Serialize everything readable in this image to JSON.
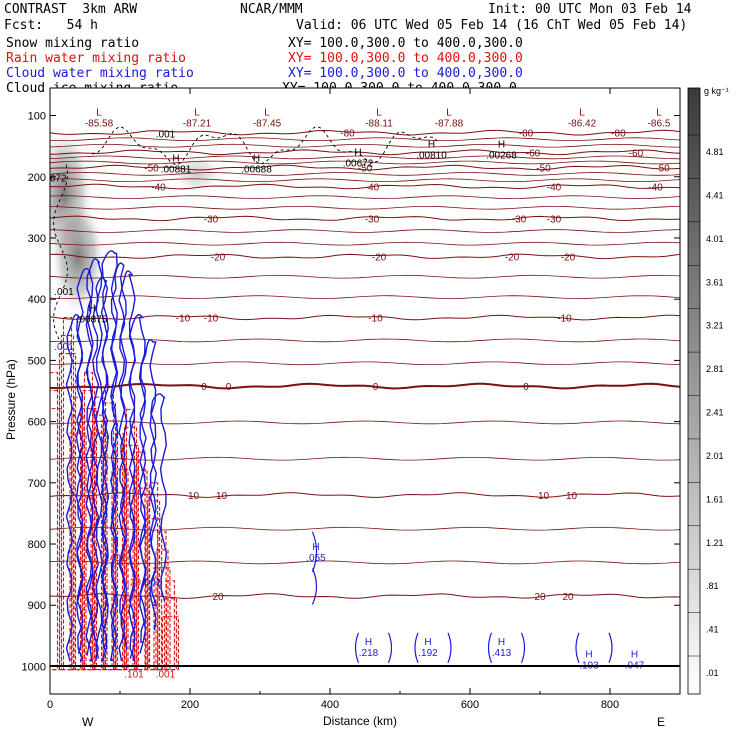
{
  "header": {
    "model": "CONTRAST  3km ARW",
    "org": "NCAR/MMM",
    "init": "Init: 00 UTC Mon 03 Feb 14",
    "fcst": "Fcst:   54 h",
    "valid": "Valid: 06 UTC Wed 05 Feb 14 (16 ChT Wed 05 Feb 14)",
    "fields": [
      {
        "label": "Snow mixing ratio",
        "xy": "XY= 100.0,300.0 to 400.0,300.0",
        "color": "#000000"
      },
      {
        "label": "Rain water mixing ratio",
        "xy": "XY= 100.0,300.0 to 400.0,300.0",
        "color": "#e01010"
      },
      {
        "label": "Cloud water mixing ratio",
        "xy": "XY= 100.0,300.0 to 400.0,300.0",
        "color": "#1a1ad8"
      },
      {
        "label": "Cloud ice mixing ratio",
        "xy": "XY= 100.0,300.0 to 400.0,300.0",
        "color": "#000000"
      }
    ]
  },
  "chart_data": {
    "type": "contour-cross-section",
    "xlabel": "Distance (km)",
    "ylabel": "Pressure (hPa)",
    "xlim": [
      0,
      900
    ],
    "ylim": [
      1045,
      55
    ],
    "x_ticks": [
      0,
      200,
      400,
      600,
      800
    ],
    "y_ticks": [
      100,
      200,
      300,
      400,
      500,
      600,
      700,
      800,
      900,
      1000
    ],
    "x_ends": {
      "left": "W",
      "right": "E"
    },
    "colorbar": {
      "unit": "g kg⁻¹",
      "labels": [
        "4.81",
        "4.41",
        "4.01",
        "3.61",
        "3.21",
        "2.81",
        "2.41",
        "2.01",
        "1.61",
        "1.21",
        ".81",
        ".41",
        ".01"
      ]
    },
    "temperature_contours": [
      {
        "value": -80,
        "p": 128,
        "labels": [
          {
            "x": 425,
            "t": "-80"
          },
          {
            "x": 680,
            "t": "-80"
          },
          {
            "x": 812,
            "t": "-80"
          }
        ]
      },
      {
        "value": -60,
        "p": 160,
        "labels": [
          {
            "x": 690,
            "t": "-60"
          },
          {
            "x": 837,
            "t": "-60"
          }
        ]
      },
      {
        "value": -50,
        "p": 185,
        "labels": [
          {
            "x": 145,
            "t": "-50"
          },
          {
            "x": 450,
            "t": "-50"
          },
          {
            "x": 705,
            "t": "-50"
          },
          {
            "x": 875,
            "t": "-50"
          }
        ]
      },
      {
        "value": -40,
        "p": 216,
        "labels": [
          {
            "x": 155,
            "t": "-40"
          },
          {
            "x": 460,
            "t": "-40"
          },
          {
            "x": 720,
            "t": "-40"
          },
          {
            "x": 865,
            "t": "-40"
          }
        ]
      },
      {
        "value": -30,
        "p": 268,
        "labels": [
          {
            "x": 230,
            "t": "-30"
          },
          {
            "x": 460,
            "t": "-30"
          },
          {
            "x": 670,
            "t": "-30"
          },
          {
            "x": 720,
            "t": "-30"
          }
        ]
      },
      {
        "value": -20,
        "p": 330,
        "labels": [
          {
            "x": 240,
            "t": "-20"
          },
          {
            "x": 470,
            "t": "-20"
          },
          {
            "x": 660,
            "t": "-20"
          },
          {
            "x": 740,
            "t": "-20"
          }
        ]
      },
      {
        "value": -10,
        "p": 430,
        "labels": [
          {
            "x": 190,
            "t": "-10"
          },
          {
            "x": 230,
            "t": "-10"
          },
          {
            "x": 465,
            "t": "-10"
          },
          {
            "x": 735,
            "t": "-10"
          }
        ]
      },
      {
        "value": 0,
        "p": 542,
        "labels": [
          {
            "x": 220,
            "t": "0"
          },
          {
            "x": 255,
            "t": "0"
          },
          {
            "x": 465,
            "t": "0"
          },
          {
            "x": 680,
            "t": "0"
          }
        ]
      },
      {
        "value": 10,
        "p": 720,
        "labels": [
          {
            "x": 205,
            "t": "10"
          },
          {
            "x": 245,
            "t": "10"
          },
          {
            "x": 705,
            "t": "10"
          },
          {
            "x": 745,
            "t": "10"
          }
        ]
      },
      {
        "value": 20,
        "p": 885,
        "labels": [
          {
            "x": 240,
            "t": "20"
          },
          {
            "x": 700,
            "t": "20"
          },
          {
            "x": 740,
            "t": "20"
          }
        ]
      }
    ],
    "top_labels": [
      {
        "x": 70,
        "p": 100,
        "l": "L",
        "v": "-85.58",
        "c": "#7a1010"
      },
      {
        "x": 210,
        "p": 100,
        "l": "L",
        "v": "-87.21",
        "c": "#7a1010"
      },
      {
        "x": 310,
        "p": 100,
        "l": "L",
        "v": "-87.45",
        "c": "#7a1010"
      },
      {
        "x": 470,
        "p": 100,
        "l": "L",
        "v": "-88.11",
        "c": "#7a1010"
      },
      {
        "x": 570,
        "p": 100,
        "l": "L",
        "v": "-87.88",
        "c": "#7a1010"
      },
      {
        "x": 760,
        "p": 100,
        "l": "L",
        "v": "-86.42",
        "c": "#7a1010"
      },
      {
        "x": 870,
        "p": 100,
        "l": "L",
        "v": "-86.5",
        "c": "#7a1010"
      }
    ],
    "max_labels": [
      {
        "x": 165,
        "p": 118,
        "l": "",
        "v": ".001",
        "c": "#000000"
      },
      {
        "x": 180,
        "p": 175,
        "l": "H",
        "v": ".00881",
        "c": "#000000"
      },
      {
        "x": 295,
        "p": 175,
        "l": "H",
        "v": ".00688",
        "c": "#000000"
      },
      {
        "x": 440,
        "p": 165,
        "l": "H",
        "v": ".00672",
        "c": "#000000"
      },
      {
        "x": 545,
        "p": 152,
        "l": "H",
        "v": ".00810",
        "c": "#000000"
      },
      {
        "x": 645,
        "p": 152,
        "l": "H",
        "v": ".00268",
        "c": "#000000"
      },
      {
        "x": 0,
        "p": 190,
        "l": "",
        "v": ".0672",
        "c": "#000000"
      },
      {
        "x": 20,
        "p": 375,
        "l": "",
        "v": ".001",
        "c": "#000000"
      },
      {
        "x": 60,
        "p": 420,
        "l": "H",
        "v": ".00875",
        "c": "#000000"
      },
      {
        "x": 20,
        "p": 465,
        "l": "",
        "v": ".001",
        "c": "#1a1ad8"
      },
      {
        "x": 380,
        "p": 810,
        "l": "H",
        "v": ".055",
        "c": "#1a1ad8"
      },
      {
        "x": 145,
        "p": 850,
        "l": "",
        "v": ".001",
        "c": "#1a1ad8"
      },
      {
        "x": 455,
        "p": 965,
        "l": "H",
        "v": ".218",
        "c": "#1a1ad8"
      },
      {
        "x": 540,
        "p": 965,
        "l": "H",
        "v": ".192",
        "c": "#1a1ad8"
      },
      {
        "x": 645,
        "p": 965,
        "l": "H",
        "v": ".413",
        "c": "#1a1ad8"
      },
      {
        "x": 770,
        "p": 985,
        "l": "H",
        "v": ".193",
        "c": "#1a1ad8"
      },
      {
        "x": 835,
        "p": 985,
        "l": "H",
        "v": ".047",
        "c": "#1a1ad8"
      },
      {
        "x": 95,
        "p": 810,
        "l": "",
        "v": ".401",
        "c": "#e01010"
      },
      {
        "x": 120,
        "p": 850,
        "l": "",
        "v": ".20",
        "c": "#e01010"
      },
      {
        "x": 120,
        "p": 1000,
        "l": "",
        "v": ".101",
        "c": "#e01010"
      },
      {
        "x": 165,
        "p": 1000,
        "l": "",
        "v": ".001",
        "c": "#e01010"
      }
    ],
    "cloud_water_columns": [
      {
        "x": 35,
        "top": 430,
        "bottom": 990
      },
      {
        "x": 50,
        "top": 355,
        "bottom": 990
      },
      {
        "x": 63,
        "top": 340,
        "bottom": 990
      },
      {
        "x": 72,
        "top": 370,
        "bottom": 990
      },
      {
        "x": 85,
        "top": 325,
        "bottom": 990
      },
      {
        "x": 98,
        "top": 345,
        "bottom": 990
      },
      {
        "x": 110,
        "top": 360,
        "bottom": 990
      },
      {
        "x": 125,
        "top": 430,
        "bottom": 990
      },
      {
        "x": 140,
        "top": 470,
        "bottom": 960
      },
      {
        "x": 155,
        "top": 560,
        "bottom": 900
      }
    ],
    "rain_columns": [
      {
        "x": 5,
        "top": 520,
        "bottom": 1005
      },
      {
        "x": 25,
        "top": 430,
        "bottom": 1005
      },
      {
        "x": 40,
        "top": 560,
        "bottom": 1005
      },
      {
        "x": 55,
        "top": 520,
        "bottom": 1005
      },
      {
        "x": 70,
        "top": 560,
        "bottom": 1005
      },
      {
        "x": 85,
        "top": 540,
        "bottom": 1005
      },
      {
        "x": 100,
        "top": 620,
        "bottom": 1005
      },
      {
        "x": 115,
        "top": 580,
        "bottom": 1005
      },
      {
        "x": 130,
        "top": 650,
        "bottom": 1005
      },
      {
        "x": 148,
        "top": 700,
        "bottom": 1005
      },
      {
        "x": 160,
        "top": 780,
        "bottom": 1005
      },
      {
        "x": 172,
        "top": 860,
        "bottom": 1005
      }
    ]
  }
}
